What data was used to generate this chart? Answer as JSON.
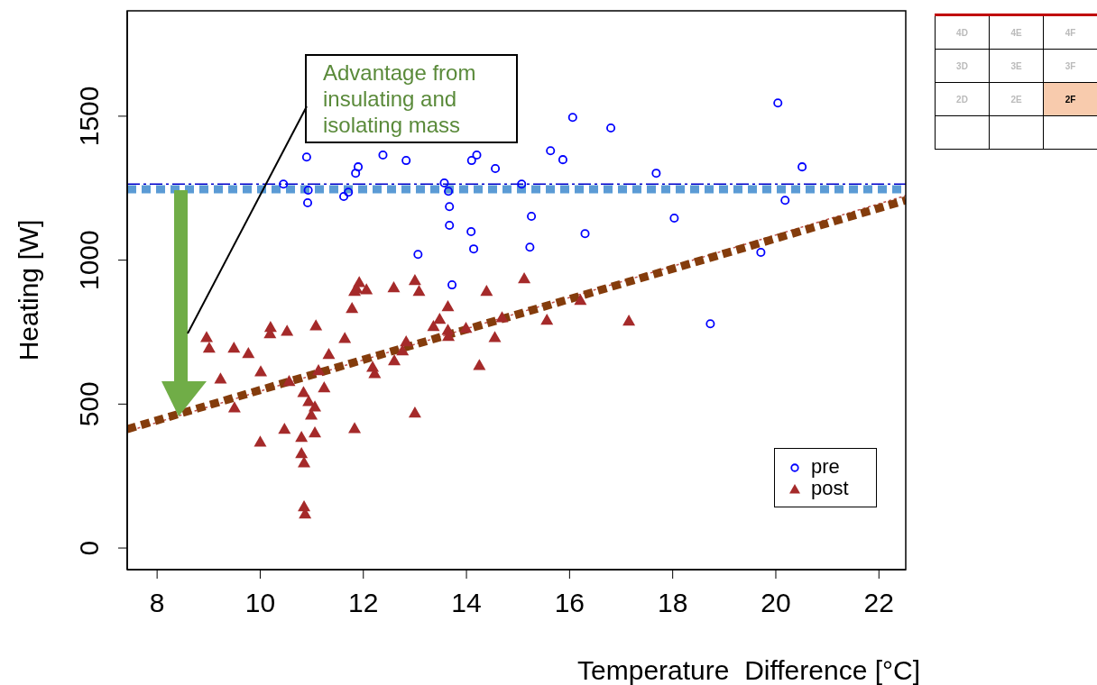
{
  "chart_data": {
    "type": "scatter",
    "xlabel": "Temperature  Difference [°C]",
    "ylabel": "Heating [W]",
    "xlim": [
      7.42,
      22.52
    ],
    "ylim": [
      -75,
      1866
    ],
    "xticks": [
      8,
      10,
      12,
      14,
      16,
      18,
      20,
      22
    ],
    "yticks": [
      0,
      500,
      1000,
      1500
    ],
    "grid": false,
    "legend": "bottom right",
    "annotations": [
      "Advantage from insulating and isolating mass",
      "4D",
      "4E",
      "4F",
      "3D",
      "3E",
      "3F",
      "2D",
      "2E",
      "2F"
    ],
    "series": [
      {
        "name": "pre",
        "marker": "circle",
        "color": "#0000ff",
        "x": [
          10.45,
          10.9,
          10.93,
          10.92,
          11.62,
          11.71,
          11.85,
          11.9,
          12.38,
          12.83,
          13.06,
          13.57,
          13.65,
          13.67,
          13.67,
          13.72,
          14.09,
          14.14,
          14.1,
          14.2,
          14.56,
          15.07,
          15.26,
          15.23,
          15.63,
          15.87,
          16.06,
          16.3,
          16.8,
          17.68,
          18.03,
          18.73,
          19.71,
          20.04,
          20.18,
          20.51
        ],
        "values": [
          1264,
          1358,
          1243,
          1199,
          1221,
          1236,
          1302,
          1324,
          1365,
          1346,
          1020,
          1268,
          1239,
          1186,
          1121,
          914,
          1099,
          1039,
          1346,
          1365,
          1318,
          1264,
          1152,
          1045,
          1380,
          1349,
          1496,
          1092,
          1459,
          1302,
          1146,
          779,
          1027,
          1546,
          1208,
          1324
        ]
      },
      {
        "name": "post",
        "marker": "triangle",
        "color": "#a52a2a",
        "x": [
          8.96,
          9.01,
          9.23,
          9.49,
          9.5,
          9.77,
          10.01,
          10.0,
          10.2,
          10.19,
          10.52,
          10.56,
          10.47,
          10.8,
          10.8,
          10.85,
          10.84,
          10.85,
          10.87,
          10.94,
          10.99,
          11.06,
          11.06,
          11.08,
          11.13,
          11.24,
          11.33,
          11.64,
          11.78,
          11.83,
          11.87,
          11.92,
          12.06,
          11.83,
          12.18,
          12.22,
          12.59,
          12.6,
          12.76,
          12.83,
          13.0,
          13.0,
          13.08,
          13.36,
          13.48,
          13.64,
          13.64,
          13.65,
          13.99,
          14.25,
          14.39,
          14.55,
          14.69,
          15.12,
          15.56,
          16.21,
          17.15
        ],
        "values": [
          732,
          695,
          588,
          695,
          488,
          676,
          613,
          369,
          767,
          745,
          754,
          579,
          413,
          385,
          329,
          297,
          541,
          144,
          119,
          510,
          463,
          491,
          401,
          773,
          617,
          557,
          673,
          729,
          833,
          892,
          901,
          923,
          898,
          416,
          629,
          607,
          905,
          651,
          686,
          717,
          930,
          470,
          892,
          770,
          795,
          839,
          757,
          736,
          764,
          635,
          892,
          732,
          801,
          936,
          792,
          861,
          789
        ]
      },
      {
        "type": "line",
        "line_style": "dashed",
        "color": "#0000cc",
        "x": [
          7.42,
          22.52
        ],
        "values": [
          1264,
          1264
        ]
      },
      {
        "type": "line",
        "line_style": "dotted",
        "color": "#5b9bd5",
        "x": [
          7.42,
          22.52
        ],
        "values": [
          1246,
          1246
        ]
      },
      {
        "type": "line",
        "line_style": "dotted",
        "color": "#c0504d",
        "x": [
          7.42,
          22.52
        ],
        "values": [
          405,
          1224
        ]
      },
      {
        "type": "line",
        "line_style": "dotted",
        "color": "#843c0c",
        "x": [
          7.42,
          22.52
        ],
        "values": [
          413,
          1208
        ]
      }
    ]
  }
}
